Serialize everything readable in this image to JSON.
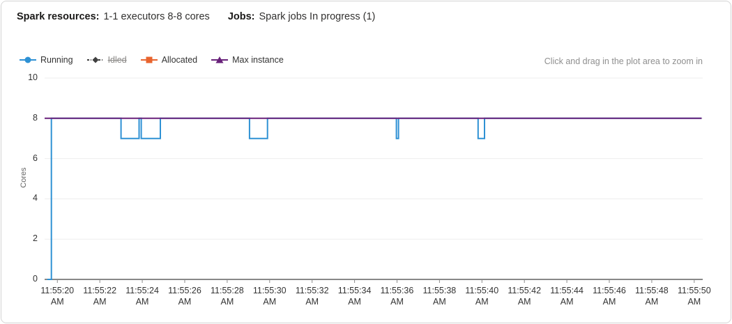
{
  "header": {
    "spark_resources_label": "Spark resources:",
    "spark_resources_value": "1-1 executors 8-8 cores",
    "jobs_label": "Jobs:",
    "jobs_value": "Spark jobs In progress (1)"
  },
  "hint": "Click and drag in the plot area to zoom in",
  "legend": {
    "items": [
      {
        "id": "running",
        "label": "Running",
        "color": "#2e91d4",
        "marker": "circle",
        "disabled": false
      },
      {
        "id": "idled",
        "label": "Idled",
        "color": "#404040",
        "marker": "diamond",
        "disabled": true
      },
      {
        "id": "allocated",
        "label": "Allocated",
        "color": "#e8642e",
        "marker": "square",
        "disabled": false
      },
      {
        "id": "max-instance",
        "label": "Max instance",
        "color": "#68217a",
        "marker": "triangle",
        "disabled": false
      }
    ]
  },
  "chart_data": {
    "type": "line",
    "title": "",
    "xlabel": "",
    "ylabel": "Cores",
    "ylim": [
      0,
      10
    ],
    "y_ticks": [
      0,
      2,
      4,
      6,
      8,
      10
    ],
    "grid": "horizontal",
    "grid_color": "#ededed",
    "axis_color": "#424242",
    "tick_color": "#8a8a8a",
    "legend_position": "top-left",
    "x_range_seconds": [
      19.4,
      50.4
    ],
    "x_ticks": [
      {
        "t": 20,
        "label": "11:55:20",
        "sub": "AM"
      },
      {
        "t": 22,
        "label": "11:55:22",
        "sub": "AM"
      },
      {
        "t": 24,
        "label": "11:55:24",
        "sub": "AM"
      },
      {
        "t": 26,
        "label": "11:55:26",
        "sub": "AM"
      },
      {
        "t": 28,
        "label": "11:55:28",
        "sub": "AM"
      },
      {
        "t": 30,
        "label": "11:55:30",
        "sub": "AM"
      },
      {
        "t": 32,
        "label": "11:55:32",
        "sub": "AM"
      },
      {
        "t": 34,
        "label": "11:55:34",
        "sub": "AM"
      },
      {
        "t": 36,
        "label": "11:55:36",
        "sub": "AM"
      },
      {
        "t": 38,
        "label": "11:55:38",
        "sub": "AM"
      },
      {
        "t": 40,
        "label": "11:55:40",
        "sub": "AM"
      },
      {
        "t": 42,
        "label": "11:55:42",
        "sub": "AM"
      },
      {
        "t": 44,
        "label": "11:55:44",
        "sub": "AM"
      },
      {
        "t": 46,
        "label": "11:55:46",
        "sub": "AM"
      },
      {
        "t": 48,
        "label": "11:55:48",
        "sub": "AM"
      },
      {
        "t": 50,
        "label": "11:55:50",
        "sub": "AM"
      }
    ],
    "series": [
      {
        "name": "Running",
        "color": "#2e91d4",
        "width": 2,
        "points": [
          [
            19.52,
            0
          ],
          [
            19.72,
            0
          ],
          [
            19.72,
            8
          ],
          [
            23.0,
            8
          ],
          [
            23.0,
            7
          ],
          [
            23.85,
            7
          ],
          [
            23.85,
            8
          ],
          [
            23.95,
            8
          ],
          [
            23.95,
            7
          ],
          [
            24.85,
            7
          ],
          [
            24.85,
            8
          ],
          [
            29.05,
            8
          ],
          [
            29.05,
            7
          ],
          [
            29.9,
            7
          ],
          [
            29.9,
            8
          ],
          [
            35.97,
            8
          ],
          [
            35.97,
            7
          ],
          [
            36.07,
            7
          ],
          [
            36.07,
            8
          ],
          [
            39.82,
            8
          ],
          [
            39.82,
            7
          ],
          [
            40.12,
            7
          ],
          [
            40.12,
            8
          ],
          [
            50.35,
            8
          ]
        ]
      },
      {
        "name": "Max instance",
        "color": "#68217a",
        "width": 2,
        "points": [
          [
            19.4,
            8
          ],
          [
            50.35,
            8
          ]
        ]
      }
    ]
  }
}
